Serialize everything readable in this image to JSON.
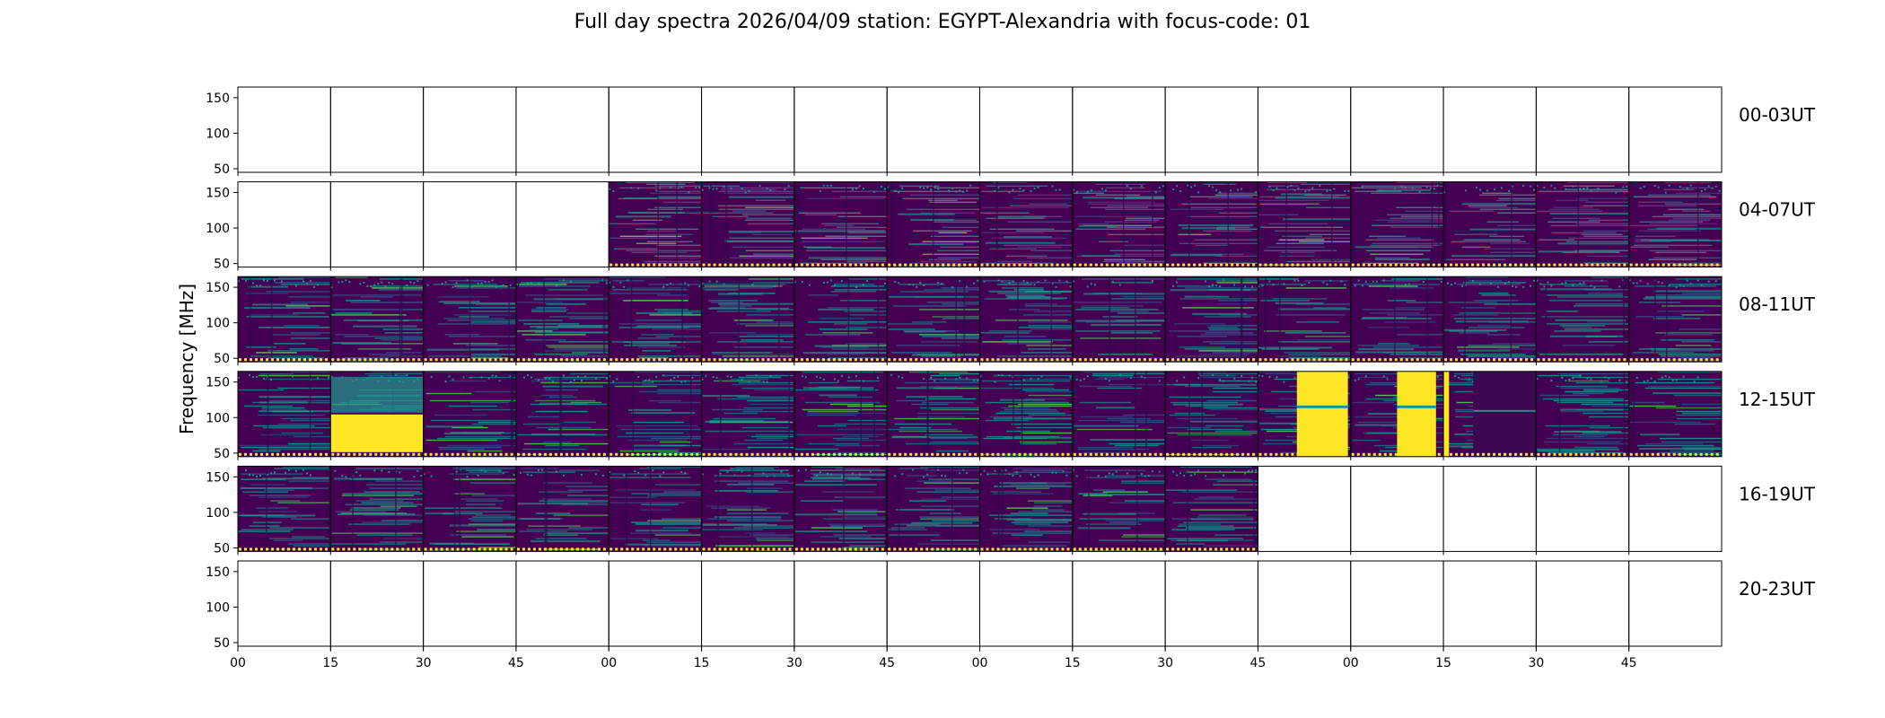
{
  "chart_data": {
    "type": "heatmap",
    "title": "Full day spectra 2026/04/09 station: EGYPT-Alexandria with focus-code: 01",
    "xlabel": "",
    "ylabel": "Frequency [MHz]",
    "ylim": [
      45,
      165
    ],
    "y_ticks": [
      50,
      100,
      150
    ],
    "x_tick_labels": [
      "00",
      "15",
      "30",
      "45",
      "00",
      "15",
      "30",
      "45",
      "00",
      "15",
      "30",
      "45",
      "00",
      "15",
      "30",
      "45"
    ],
    "colormap": [
      "#440154",
      "#3b528b",
      "#21918c",
      "#5ec962",
      "#fde725"
    ],
    "rows": [
      {
        "label": "00-03UT",
        "panels": [
          "e",
          "e",
          "e",
          "e",
          "e",
          "e",
          "e",
          "e",
          "e",
          "e",
          "e",
          "e",
          "e",
          "e",
          "e",
          "e"
        ]
      },
      {
        "label": "04-07UT",
        "panels": [
          "e",
          "e",
          "e",
          "e",
          "d",
          "d",
          "d",
          "d",
          "d",
          "d",
          "d",
          "d",
          "d",
          "d",
          "d",
          "d"
        ]
      },
      {
        "label": "08-11UT",
        "panels": [
          "d",
          "d",
          "d",
          "d",
          "d",
          "d",
          "d",
          "d",
          "d",
          "d",
          "d",
          "d",
          "d",
          "d",
          "d",
          "d"
        ]
      },
      {
        "label": "12-15UT",
        "panels": [
          "d",
          "b",
          "d",
          "d",
          "d",
          "d",
          "d",
          "d",
          "d",
          "d",
          "d",
          "s",
          "s",
          "m",
          "d",
          "d"
        ]
      },
      {
        "label": "16-19UT",
        "panels": [
          "d",
          "d",
          "d",
          "d",
          "d",
          "d",
          "d",
          "d",
          "d",
          "d",
          "d",
          "e",
          "e",
          "e",
          "e",
          "e"
        ]
      },
      {
        "label": "20-23UT",
        "panels": [
          "e",
          "e",
          "e",
          "e",
          "e",
          "e",
          "e",
          "e",
          "e",
          "e",
          "e",
          "e",
          "e",
          "e",
          "e",
          "e"
        ]
      }
    ]
  }
}
